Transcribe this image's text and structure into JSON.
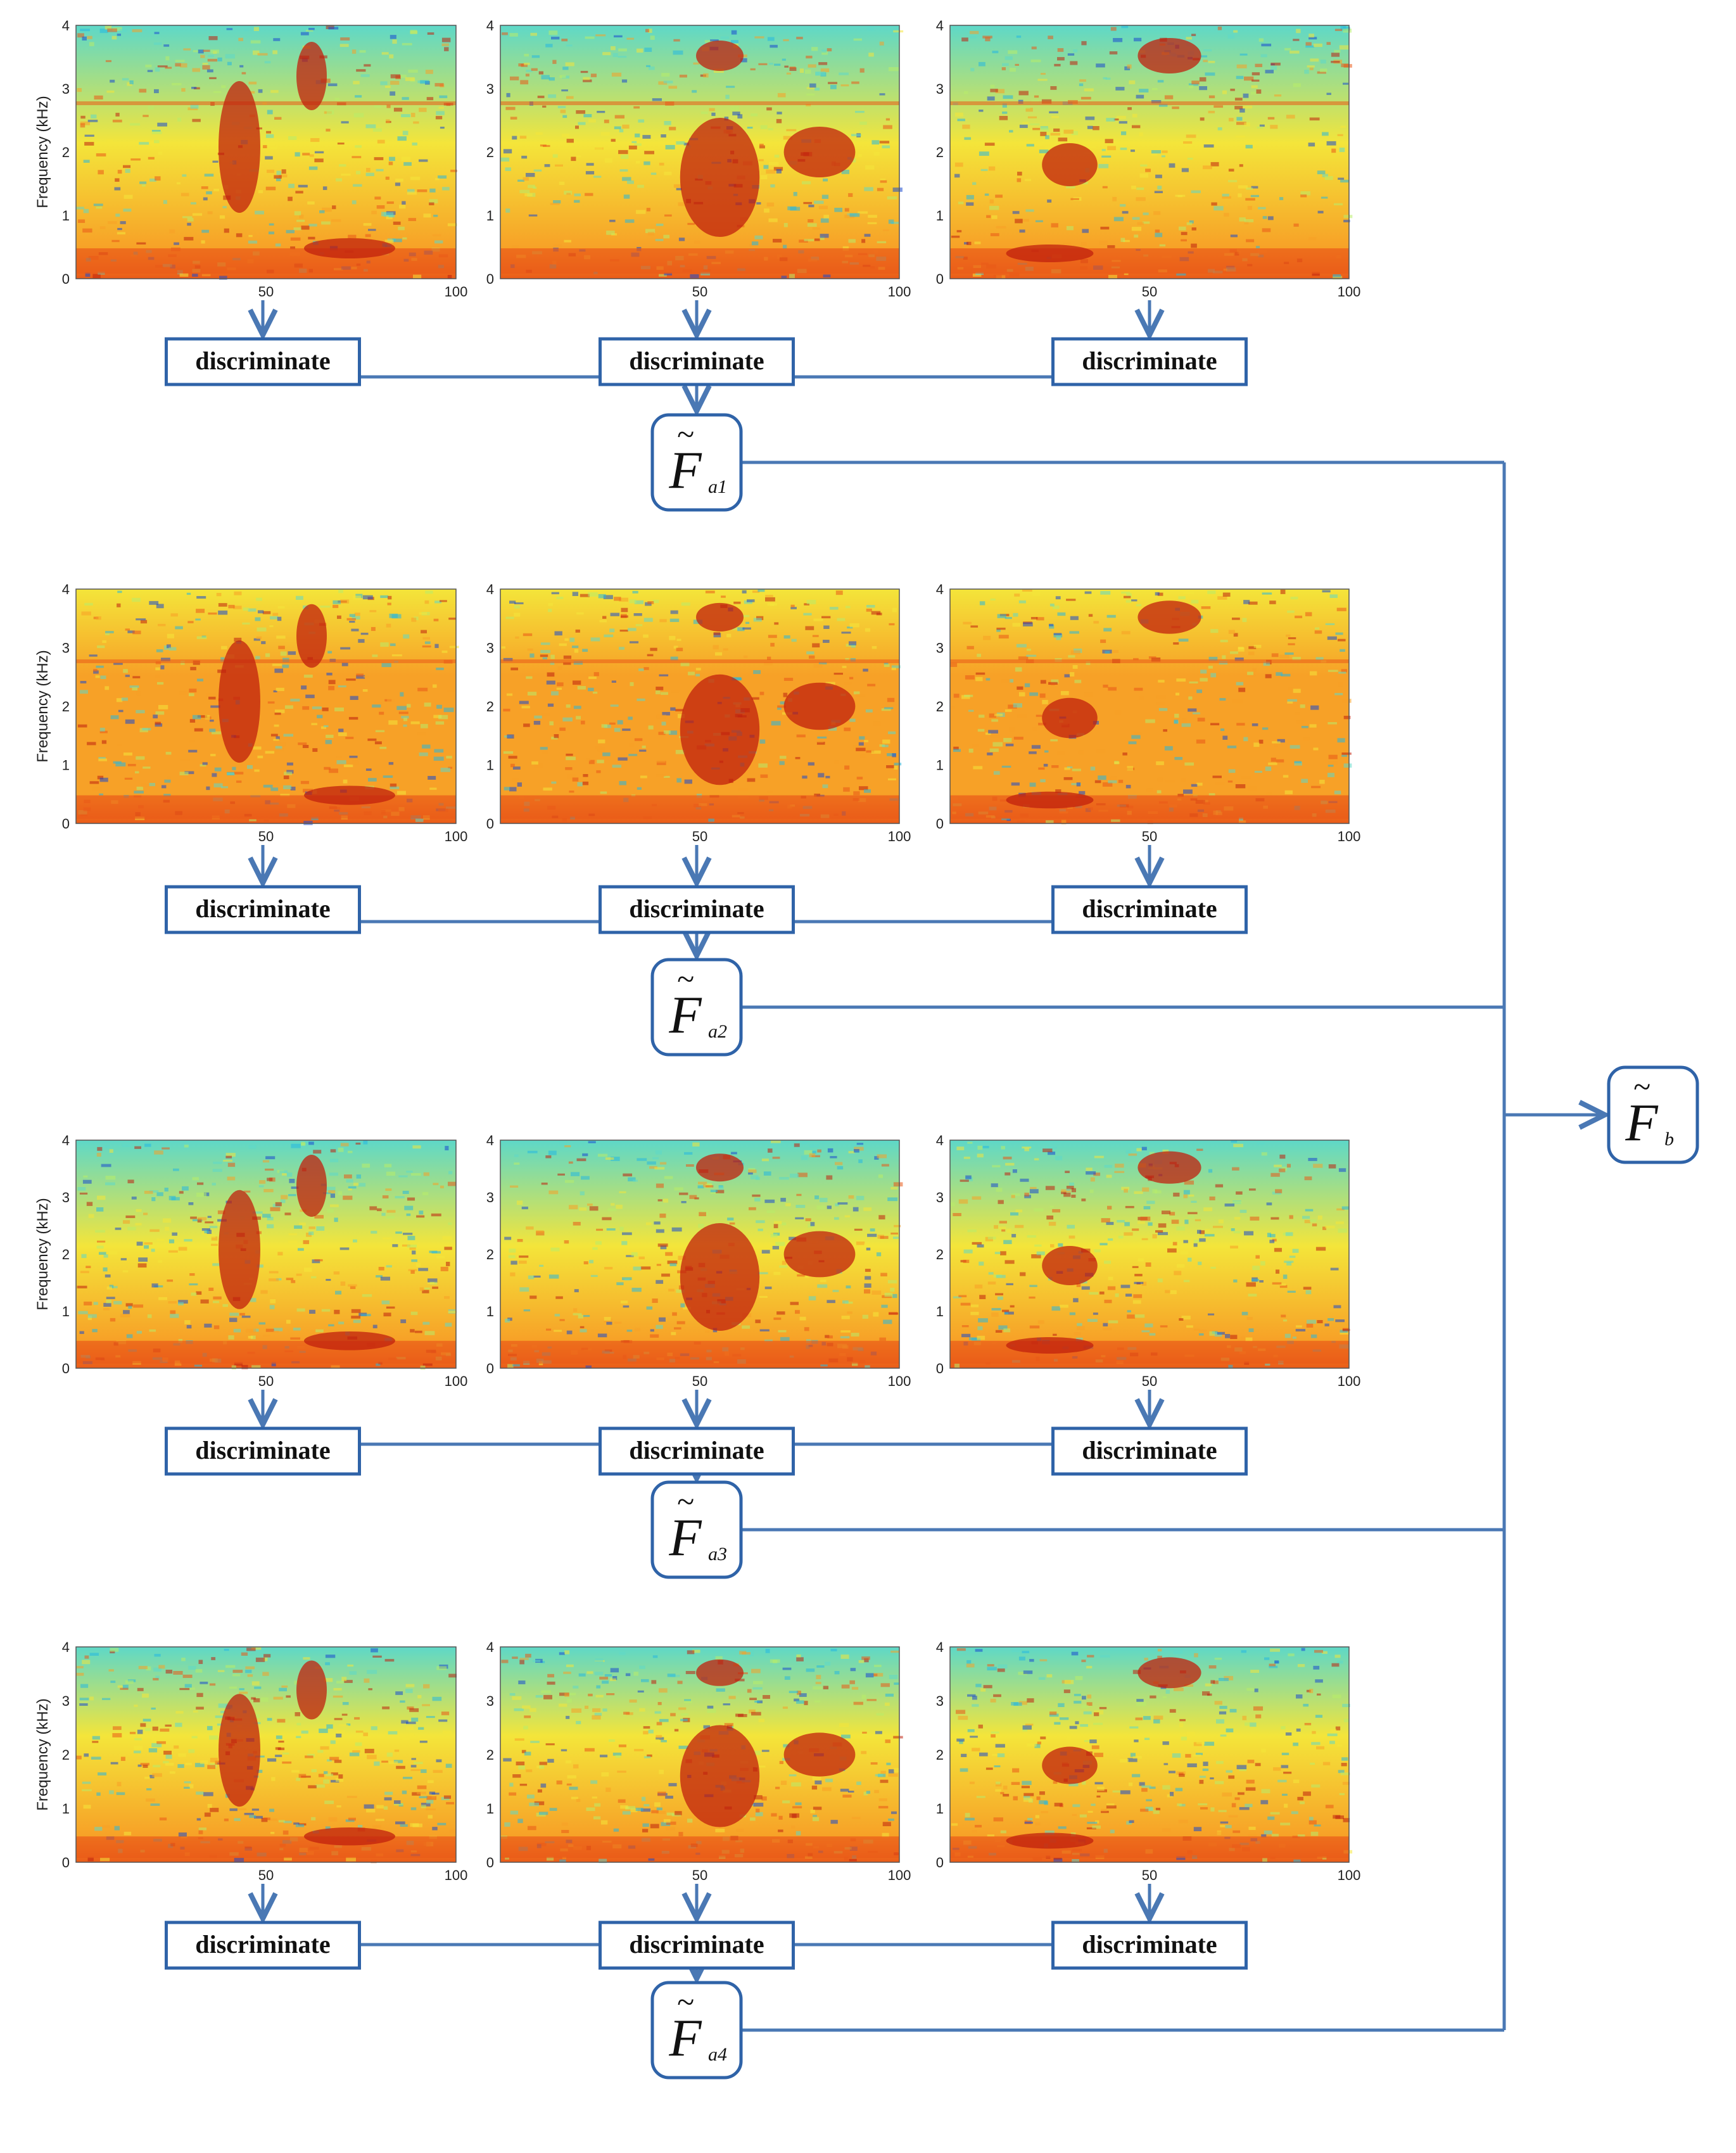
{
  "colors": {
    "flow": "#4a78b4",
    "box_border": "#2f63a8",
    "spectrogram_palette": [
      "#1a4ad0",
      "#27b8e0",
      "#5ed8c8",
      "#b8ec6a",
      "#f4e53a",
      "#f7a127",
      "#ea5a18",
      "#c0200e"
    ]
  },
  "spectrogram_axes": {
    "y_label": "Frequency (kHz)",
    "y_ticks": [
      "0",
      "1",
      "2",
      "3",
      "4"
    ],
    "x_ticks": [
      "50",
      "100"
    ]
  },
  "discriminate_label": "discriminate",
  "rows": [
    {
      "output": {
        "symbol": "F",
        "tilde": "~",
        "subscript": "a1"
      }
    },
    {
      "output": {
        "symbol": "F",
        "tilde": "~",
        "subscript": "a2"
      }
    },
    {
      "output": {
        "symbol": "F",
        "tilde": "~",
        "subscript": "a3"
      }
    },
    {
      "output": {
        "symbol": "F",
        "tilde": "~",
        "subscript": "a4"
      }
    }
  ],
  "final_output": {
    "symbol": "F",
    "tilde": "~",
    "subscript": "b"
  }
}
